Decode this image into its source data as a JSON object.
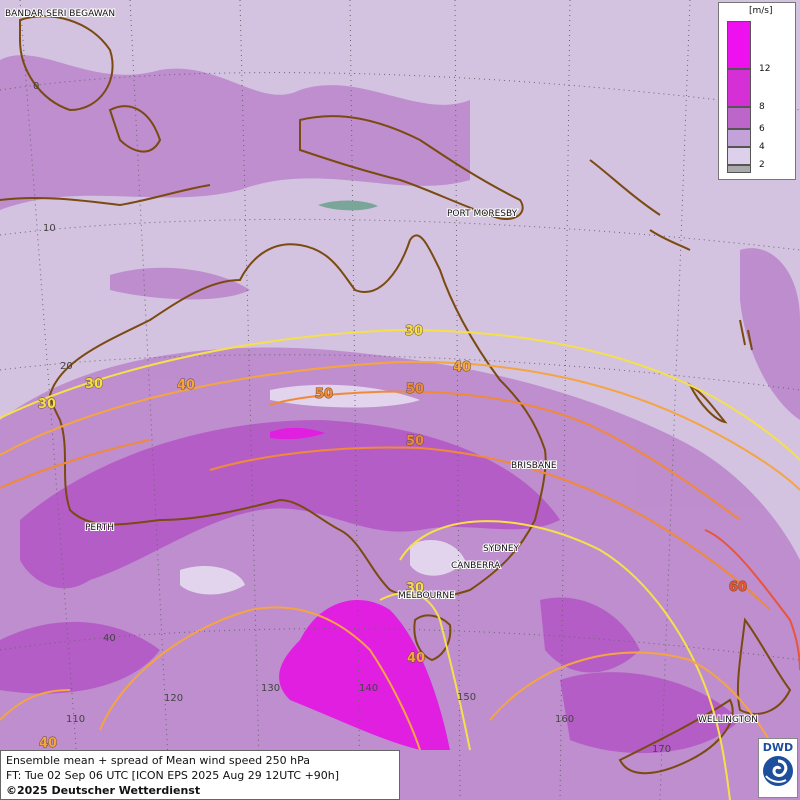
{
  "map": {
    "cities": [
      {
        "name": "BANDAR SERI BEGAWAN"
      },
      {
        "name": "PORT MORESBY"
      },
      {
        "name": "BRISBANE"
      },
      {
        "name": "PERTH"
      },
      {
        "name": "SYDNEY"
      },
      {
        "name": "CANBERRA"
      },
      {
        "name": "MELBOURNE"
      },
      {
        "name": "WELLINGTON"
      }
    ],
    "latitude_labels": [
      "0",
      "10",
      "20",
      "40"
    ],
    "longitude_labels": [
      "110",
      "120",
      "130",
      "140",
      "150",
      "160",
      "170"
    ],
    "contour_labels": [
      "30",
      "30",
      "30",
      "40",
      "40",
      "50",
      "50",
      "50",
      "30",
      "40",
      "60",
      "40"
    ],
    "contour_colors": {
      "30": "#f5e04a",
      "40": "#f5a442",
      "50": "#f08a3a",
      "60": "#e8553a"
    }
  },
  "legend": {
    "unit": "[m/s]",
    "levels": [
      {
        "label": "12",
        "color": "#ee10ee"
      },
      {
        "label": "8",
        "color": "#d530d5"
      },
      {
        "label": "6",
        "color": "#bb66c8"
      },
      {
        "label": "4",
        "color": "#c3a2d9"
      },
      {
        "label": "2",
        "color": "#dcd0ea"
      }
    ]
  },
  "info": {
    "line1": "Ensemble mean + spread of Mean wind speed 250 hPa",
    "line2": "FT: Tue 02 Sep 06 UTC [ICON EPS 2025 Aug 29 12UTC +90h]",
    "line3": "©2025 Deutscher Wetterdienst"
  },
  "logo": {
    "text": "DWD"
  }
}
